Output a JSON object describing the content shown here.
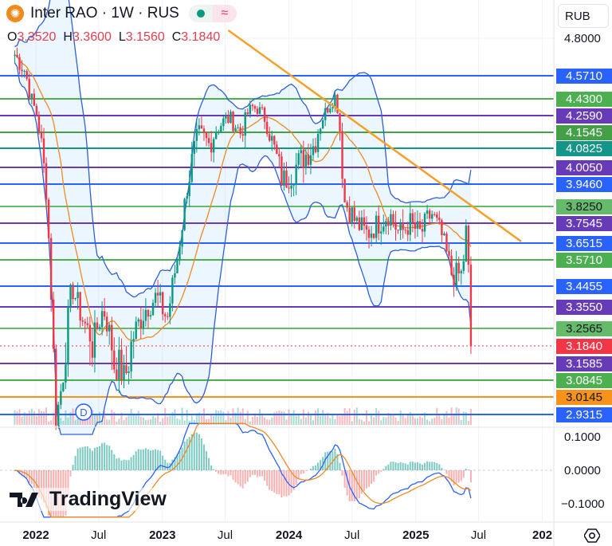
{
  "header": {
    "title": "Inter RAO · 1W · RUS",
    "logo_icon": "inter-rao-logo",
    "status_icon": "market-open-dot",
    "indicator_icon": "approx-icon",
    "ohlc": [
      {
        "key": "O",
        "value": "3.3520"
      },
      {
        "key": "H",
        "value": "3.3600"
      },
      {
        "key": "L",
        "value": "3.1560"
      },
      {
        "key": "C",
        "value": "3.1840"
      }
    ]
  },
  "currency_select": "RUB",
  "logo_text": "TradingView",
  "settings_icon": "gear-icon",
  "dividend_marker": "D",
  "colors": {
    "up": "#089981",
    "down": "#f23645",
    "band": "#2f5fd6",
    "ma": "#f08a24",
    "trend": "#f5a02a"
  },
  "chart_data": {
    "type": "candlestick",
    "interval": "1W",
    "price_axis_ticks": [
      "4.8000"
    ],
    "macd_axis_ticks": [
      "0.1000",
      "0.0000",
      "−0.1000"
    ],
    "time_ticks": [
      {
        "label": "2022",
        "date": "2022-01-01",
        "year": true
      },
      {
        "label": "Jul",
        "date": "2022-07-01",
        "year": false
      },
      {
        "label": "2023",
        "date": "2023-01-01",
        "year": true
      },
      {
        "label": "Jul",
        "date": "2023-07-01",
        "year": false
      },
      {
        "label": "2024",
        "date": "2024-01-01",
        "year": true
      },
      {
        "label": "Jul",
        "date": "2024-07-01",
        "year": false
      },
      {
        "label": "2025",
        "date": "2025-01-01",
        "year": true
      },
      {
        "label": "Jul",
        "date": "2025-07-01",
        "year": false
      },
      {
        "label": "202",
        "date": "2026-01-01",
        "year": true
      }
    ],
    "level_lines": [
      {
        "price": "4.5710",
        "color": "#2962ff",
        "text": "#ffffff"
      },
      {
        "price": "4.4300",
        "color": "#4caf50",
        "text": "#ffffff"
      },
      {
        "price": "4.2590",
        "color": "#673ab7",
        "text": "#ffffff"
      },
      {
        "price": "4.1545",
        "color": "#43a047",
        "text": "#ffffff"
      },
      {
        "price": "4.0825",
        "color": "#13958a",
        "text": "#ffffff"
      },
      {
        "price": "4.0050",
        "color": "#673ab7",
        "text": "#ffffff"
      },
      {
        "price": "3.9460",
        "color": "#2962ff",
        "text": "#ffffff"
      },
      {
        "price": "3.8250",
        "color": "#66bb6a",
        "text": "#131722"
      },
      {
        "price": "3.7545",
        "color": "#673ab7",
        "text": "#ffffff"
      },
      {
        "price": "3.6515",
        "color": "#2962ff",
        "text": "#ffffff"
      },
      {
        "price": "3.5710",
        "color": "#4caf50",
        "text": "#ffffff"
      },
      {
        "price": "3.4455",
        "color": "#2962ff",
        "text": "#ffffff"
      },
      {
        "price": "3.3550",
        "color": "#673ab7",
        "text": "#ffffff"
      },
      {
        "price": "3.2565",
        "color": "#66bb6a",
        "text": "#131722"
      },
      {
        "price": "3.1840",
        "color": "#f23645",
        "text": "#ffffff",
        "current": true
      },
      {
        "price": "3.1585",
        "color": "#673ab7",
        "text": "#ffffff"
      },
      {
        "price": "3.0845",
        "color": "#4caf50",
        "text": "#ffffff"
      },
      {
        "price": "3.0145",
        "color": "#f7931a",
        "text": "#131722"
      },
      {
        "price": "2.9315",
        "color": "#2962ff",
        "text": "#ffffff"
      }
    ],
    "trendline": [
      [
        "2023-07-10",
        4.85
      ],
      [
        "2025-11-01",
        3.66
      ]
    ],
    "approx_closes": [
      [
        "2021-11-01",
        4.7
      ],
      [
        "2021-12-01",
        4.6
      ],
      [
        "2022-01-01",
        4.3
      ],
      [
        "2022-02-01",
        3.9
      ],
      [
        "2022-02-28",
        2.9
      ],
      [
        "2022-03-20",
        3.1
      ],
      [
        "2022-04-15",
        3.45
      ],
      [
        "2022-05-15",
        3.3
      ],
      [
        "2022-06-15",
        3.2
      ],
      [
        "2022-07-15",
        3.35
      ],
      [
        "2022-08-15",
        3.15
      ],
      [
        "2022-09-15",
        3.1
      ],
      [
        "2022-10-15",
        3.25
      ],
      [
        "2022-11-15",
        3.35
      ],
      [
        "2022-12-15",
        3.4
      ],
      [
        "2023-01-15",
        3.3
      ],
      [
        "2023-02-15",
        3.6
      ],
      [
        "2023-03-15",
        3.95
      ],
      [
        "2023-04-15",
        4.15
      ],
      [
        "2023-05-15",
        4.1
      ],
      [
        "2023-06-15",
        4.2
      ],
      [
        "2023-07-15",
        4.25
      ],
      [
        "2023-08-15",
        4.15
      ],
      [
        "2023-09-15",
        4.35
      ],
      [
        "2023-10-15",
        4.3
      ],
      [
        "2023-11-15",
        4.1
      ],
      [
        "2023-12-15",
        3.95
      ],
      [
        "2024-01-15",
        4.0
      ],
      [
        "2024-02-15",
        4.05
      ],
      [
        "2024-03-15",
        4.1
      ],
      [
        "2024-04-15",
        4.3
      ],
      [
        "2024-05-15",
        4.45
      ],
      [
        "2024-06-10",
        3.85
      ],
      [
        "2024-07-15",
        3.75
      ],
      [
        "2024-08-15",
        3.7
      ],
      [
        "2024-09-15",
        3.75
      ],
      [
        "2024-10-15",
        3.8
      ],
      [
        "2024-11-15",
        3.7
      ],
      [
        "2024-12-15",
        3.75
      ],
      [
        "2025-01-15",
        3.7
      ],
      [
        "2025-02-15",
        3.8
      ],
      [
        "2025-03-15",
        3.7
      ],
      [
        "2025-04-15",
        3.5
      ],
      [
        "2025-05-15",
        3.5
      ],
      [
        "2025-05-28",
        3.75
      ],
      [
        "2025-06-09",
        3.184
      ]
    ]
  }
}
